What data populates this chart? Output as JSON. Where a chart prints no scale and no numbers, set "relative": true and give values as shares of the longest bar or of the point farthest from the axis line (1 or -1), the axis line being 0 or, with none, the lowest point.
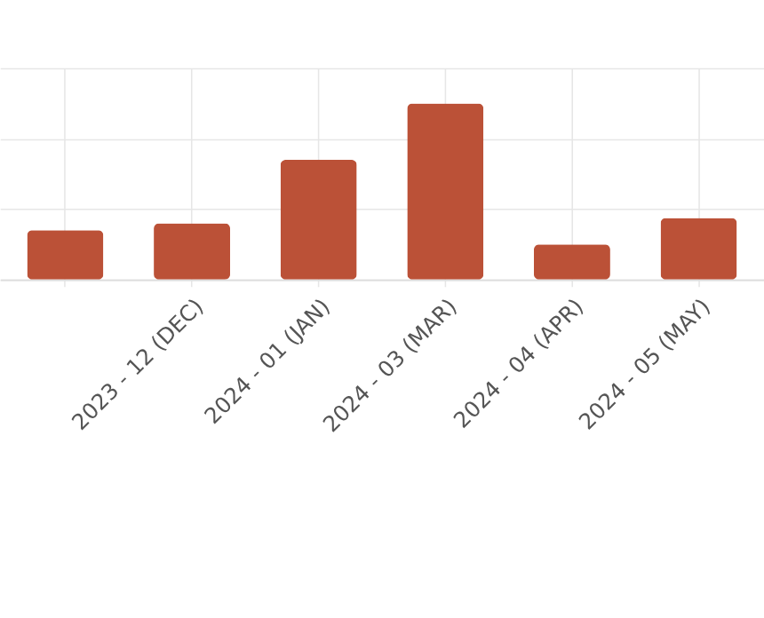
{
  "chart_data": {
    "type": "bar",
    "relative": true,
    "grid": true,
    "color": "#bb5137",
    "categories": [
      null,
      "2023 - 12 (DEC)",
      "2024 - 01 (JAN)",
      "2024 - 03 (MAR)",
      "2024 - 04 (APR)",
      "2024 - 05 (MAY)"
    ],
    "values": [
      0.28,
      0.32,
      0.68,
      1,
      0.2,
      0.35
    ]
  }
}
